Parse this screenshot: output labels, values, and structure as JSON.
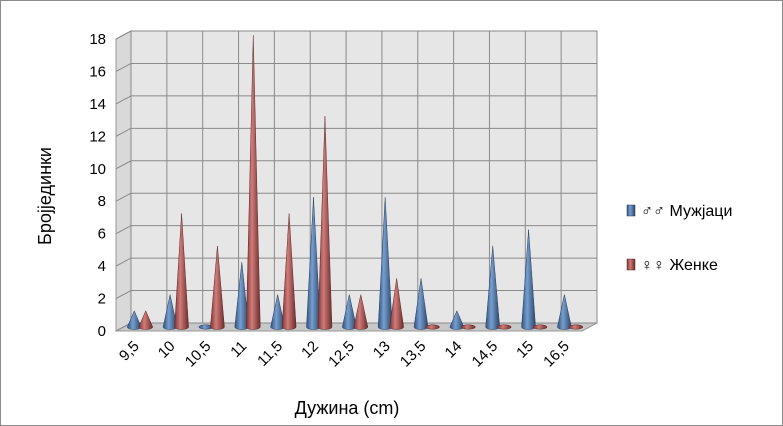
{
  "chart_data": {
    "type": "bar",
    "subtype": "3d-cone-clustered",
    "title": "",
    "xlabel": "Дужина (cm)",
    "ylabel": "Бројјединки",
    "categories": [
      "9,5",
      "10",
      "10,5",
      "11",
      "11,5",
      "12",
      "12,5",
      "13",
      "13,5",
      "14",
      "14,5",
      "15",
      "16,5"
    ],
    "ylim": [
      0,
      18
    ],
    "yticks": [
      0,
      2,
      4,
      6,
      8,
      10,
      12,
      14,
      16,
      18
    ],
    "series": [
      {
        "name": "♂♂ Мужјаци",
        "color": "#4a7ebf",
        "values": [
          1,
          2,
          0,
          4,
          2,
          8,
          2,
          8,
          3,
          1,
          5,
          6,
          2
        ]
      },
      {
        "name": "♀♀ Женке",
        "color": "#c0504d",
        "values": [
          1,
          7,
          5,
          18,
          7,
          13,
          2,
          3,
          0,
          0,
          0,
          0,
          0
        ]
      }
    ],
    "grid": true,
    "legend_position": "right"
  }
}
